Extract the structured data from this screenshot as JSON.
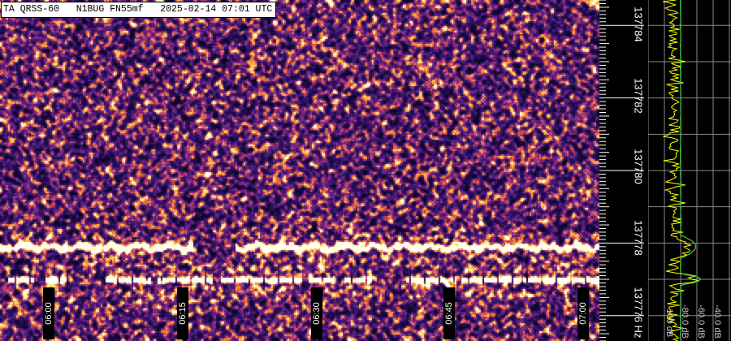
{
  "header": {
    "title": "TA QRSS-60   N1BUG FN55mf   2025-02-14 07:01 UTC"
  },
  "chart_data": {
    "type": "heatmap",
    "title": "TA QRSS-60   N1BUG FN55mf   2025-02-14 07:01 UTC",
    "x_ticks": [
      "06:00",
      "06:15",
      "06:30",
      "06:45",
      "07:00"
    ],
    "y_ticks": [
      "137784",
      "137782",
      "137780",
      "137778",
      "137776 Hz"
    ],
    "y_unit": "Hz",
    "ylim": [
      137775.3,
      137784.7
    ],
    "colormap": "inferno",
    "signals": [
      {
        "freq_hz": 137777.9,
        "description_visible": "continuous trace",
        "gaps_utc": [
          [
            "06:16",
            "06:21"
          ]
        ]
      },
      {
        "freq_hz": 137777.0,
        "description_visible": "dashed trace"
      }
    ],
    "spectrum_panel": {
      "db_ticks": [
        "-100 dB",
        "-80.0 dB",
        "-60.0 dB",
        "-40.0 dB"
      ],
      "xlim_db": [
        -120,
        -20
      ],
      "noise_floor_db": -80,
      "peaks": [
        {
          "freq_hz": 137777.9,
          "db": -62
        },
        {
          "freq_hz": 137777.0,
          "db": -55
        }
      ],
      "grid": true
    }
  },
  "colors": {
    "trace_avg": "#3cd23c",
    "trace_inst": "#ffff00",
    "grid": "#8a8a8a",
    "background": "#000000"
  }
}
